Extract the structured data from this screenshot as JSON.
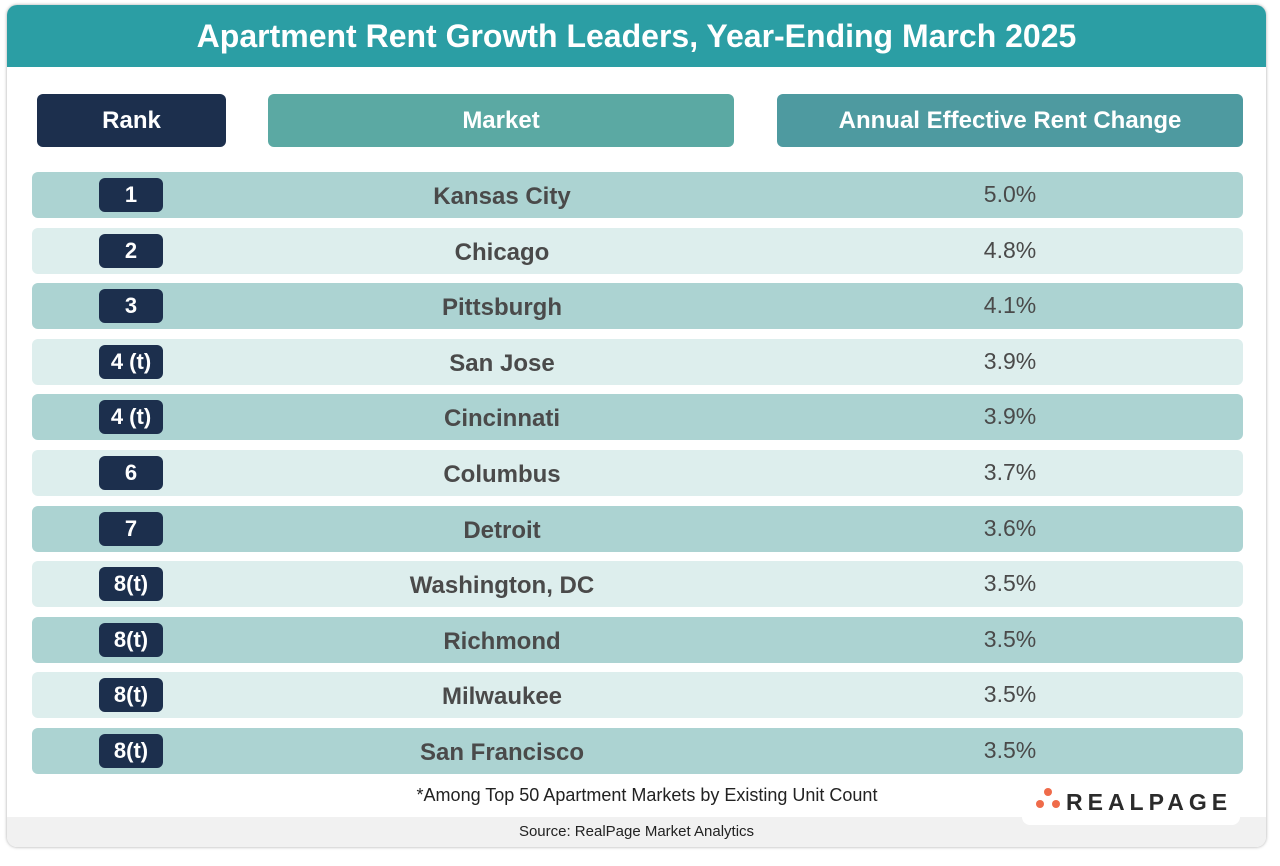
{
  "title": "Apartment Rent Growth Leaders, Year-Ending March 2025",
  "columns": {
    "rank": "Rank",
    "market": "Market",
    "change": "Annual Effective Rent Change"
  },
  "colors": {
    "header": "#2b9ea4",
    "rank_header": "#1c2f4d",
    "market_header": "#5ba9a3",
    "change_header": "#4e9aa0",
    "row_dark": "#acd3d2",
    "row_light": "#ddeeed",
    "badge": "#1c2f4d",
    "logo_dots": "#ef6b4a"
  },
  "chart_data": {
    "type": "table",
    "title": "Apartment Rent Growth Leaders, Year-Ending March 2025",
    "columns": [
      "Rank",
      "Market",
      "Annual Effective Rent Change"
    ],
    "rows": [
      {
        "rank": "1",
        "market": "Kansas City",
        "change": "5.0%"
      },
      {
        "rank": "2",
        "market": "Chicago",
        "change": "4.8%"
      },
      {
        "rank": "3",
        "market": "Pittsburgh",
        "change": "4.1%"
      },
      {
        "rank": "4 (t)",
        "market": "San Jose",
        "change": "3.9%"
      },
      {
        "rank": "4 (t)",
        "market": "Cincinnati",
        "change": "3.9%"
      },
      {
        "rank": "6",
        "market": "Columbus",
        "change": "3.7%"
      },
      {
        "rank": "7",
        "market": "Detroit",
        "change": "3.6%"
      },
      {
        "rank": "8(t)",
        "market": "Washington, DC",
        "change": "3.5%"
      },
      {
        "rank": "8(t)",
        "market": "Richmond",
        "change": "3.5%"
      },
      {
        "rank": "8(t)",
        "market": "Milwaukee",
        "change": "3.5%"
      },
      {
        "rank": "8(t)",
        "market": "San Francisco",
        "change": "3.5%"
      }
    ]
  },
  "footnote": "*Among Top 50 Apartment Markets by Existing Unit Count",
  "source": "Source: RealPage Market Analytics",
  "logo": "REALPAGE"
}
